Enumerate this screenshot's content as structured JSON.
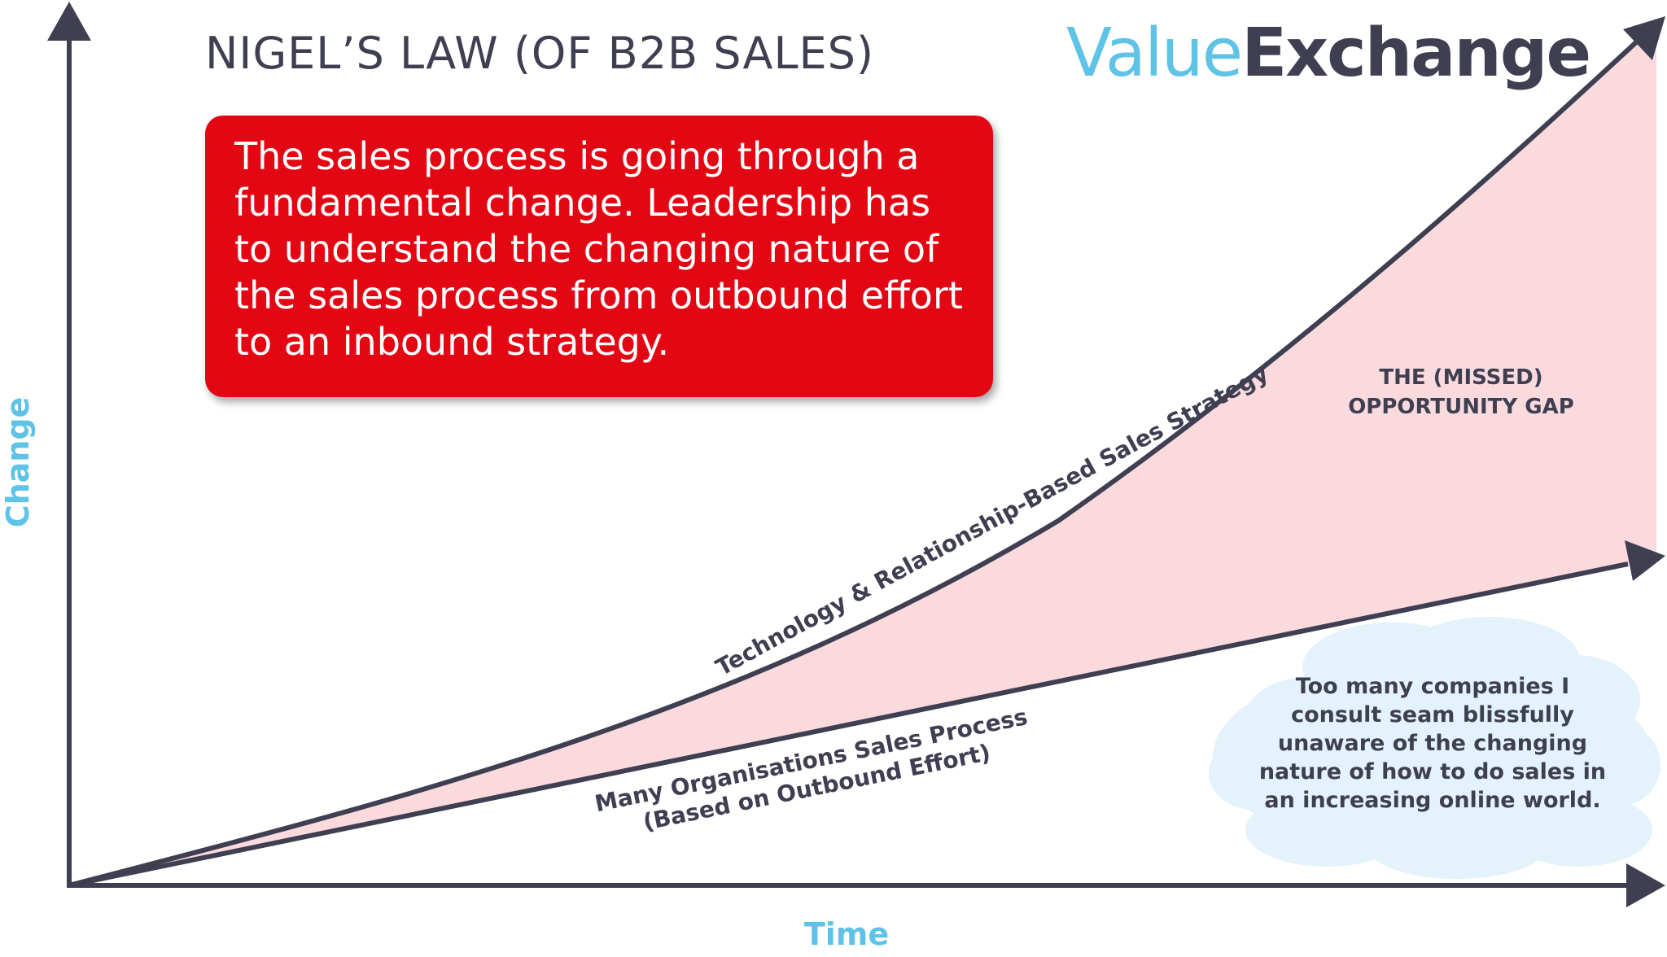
{
  "title": "NIGEL’S LAW (OF B2B SALES)",
  "logo": {
    "value": "Value",
    "exchange": "Exchange"
  },
  "callout": {
    "text": "The sales process is going through a fundamental change. Leadership has to understand the changing nature of the sales process from outbound effort to an inbound strategy."
  },
  "axes": {
    "y_label": "Change",
    "x_label": "Time"
  },
  "curves": {
    "upper_label": "Technology & Relationship-Based Sales Strategy",
    "lower_label_line1": "Many Organisations Sales Process",
    "lower_label_line2": "(Based on Outbound Effort)"
  },
  "gap_label": "THE (MISSED)\nOPPORTUNITY GAP",
  "cloud_text": "Too many companies I consult seam blissfully unaware of the changing nature of how to do sales in an increasing online world.",
  "colors": {
    "axis": "#3f3f52",
    "gap_fill": "#fadadd",
    "callout_bg": "#e30613",
    "cloud_fill": "#e3f2fb",
    "accent_blue": "#5ec3e6",
    "dark_text": "#3f3f52"
  }
}
